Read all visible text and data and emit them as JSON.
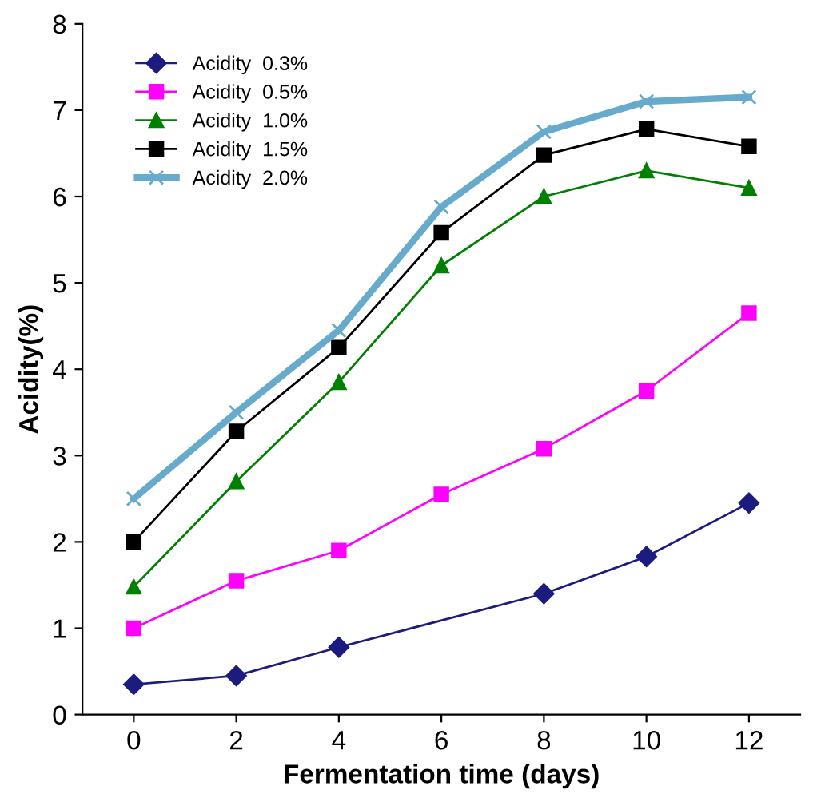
{
  "chart_data": {
    "type": "line",
    "xlabel": "Fermentation time (days)",
    "ylabel": "Acidity(%)",
    "x": [
      0,
      2,
      4,
      6,
      8,
      10,
      12
    ],
    "series": [
      {
        "name": "Acidity  0.3%",
        "color": "#1c1c80",
        "marker": "diamond",
        "x": [
          0,
          2,
          4,
          8,
          10,
          12
        ],
        "values": [
          0.35,
          0.45,
          0.78,
          1.4,
          1.83,
          2.45
        ]
      },
      {
        "name": "Acidity  0.5%",
        "color": "#ff00ff",
        "marker": "square",
        "values": [
          1.0,
          1.55,
          1.9,
          2.55,
          3.08,
          3.75,
          4.65
        ]
      },
      {
        "name": "Acidity  1.0%",
        "color": "#008000",
        "marker": "triangle",
        "values": [
          1.48,
          2.7,
          3.85,
          5.2,
          6.0,
          6.3,
          6.1
        ]
      },
      {
        "name": "Acidity  1.5%",
        "color": "#000000",
        "marker": "square",
        "values": [
          2.0,
          3.28,
          4.25,
          5.58,
          6.48,
          6.78,
          6.58
        ]
      },
      {
        "name": "Acidity  2.0%",
        "color": "#66aacc",
        "marker": "cross",
        "values": [
          2.5,
          3.5,
          4.45,
          5.88,
          6.75,
          7.1,
          7.15
        ]
      }
    ],
    "xlim": [
      -1,
      13
    ],
    "xticks": [
      0,
      2,
      4,
      6,
      8,
      10,
      12
    ],
    "ylim": [
      0,
      8
    ],
    "yticks": [
      0,
      1,
      2,
      3,
      4,
      5,
      6,
      7,
      8
    ],
    "grid": false,
    "legend": "top left"
  }
}
